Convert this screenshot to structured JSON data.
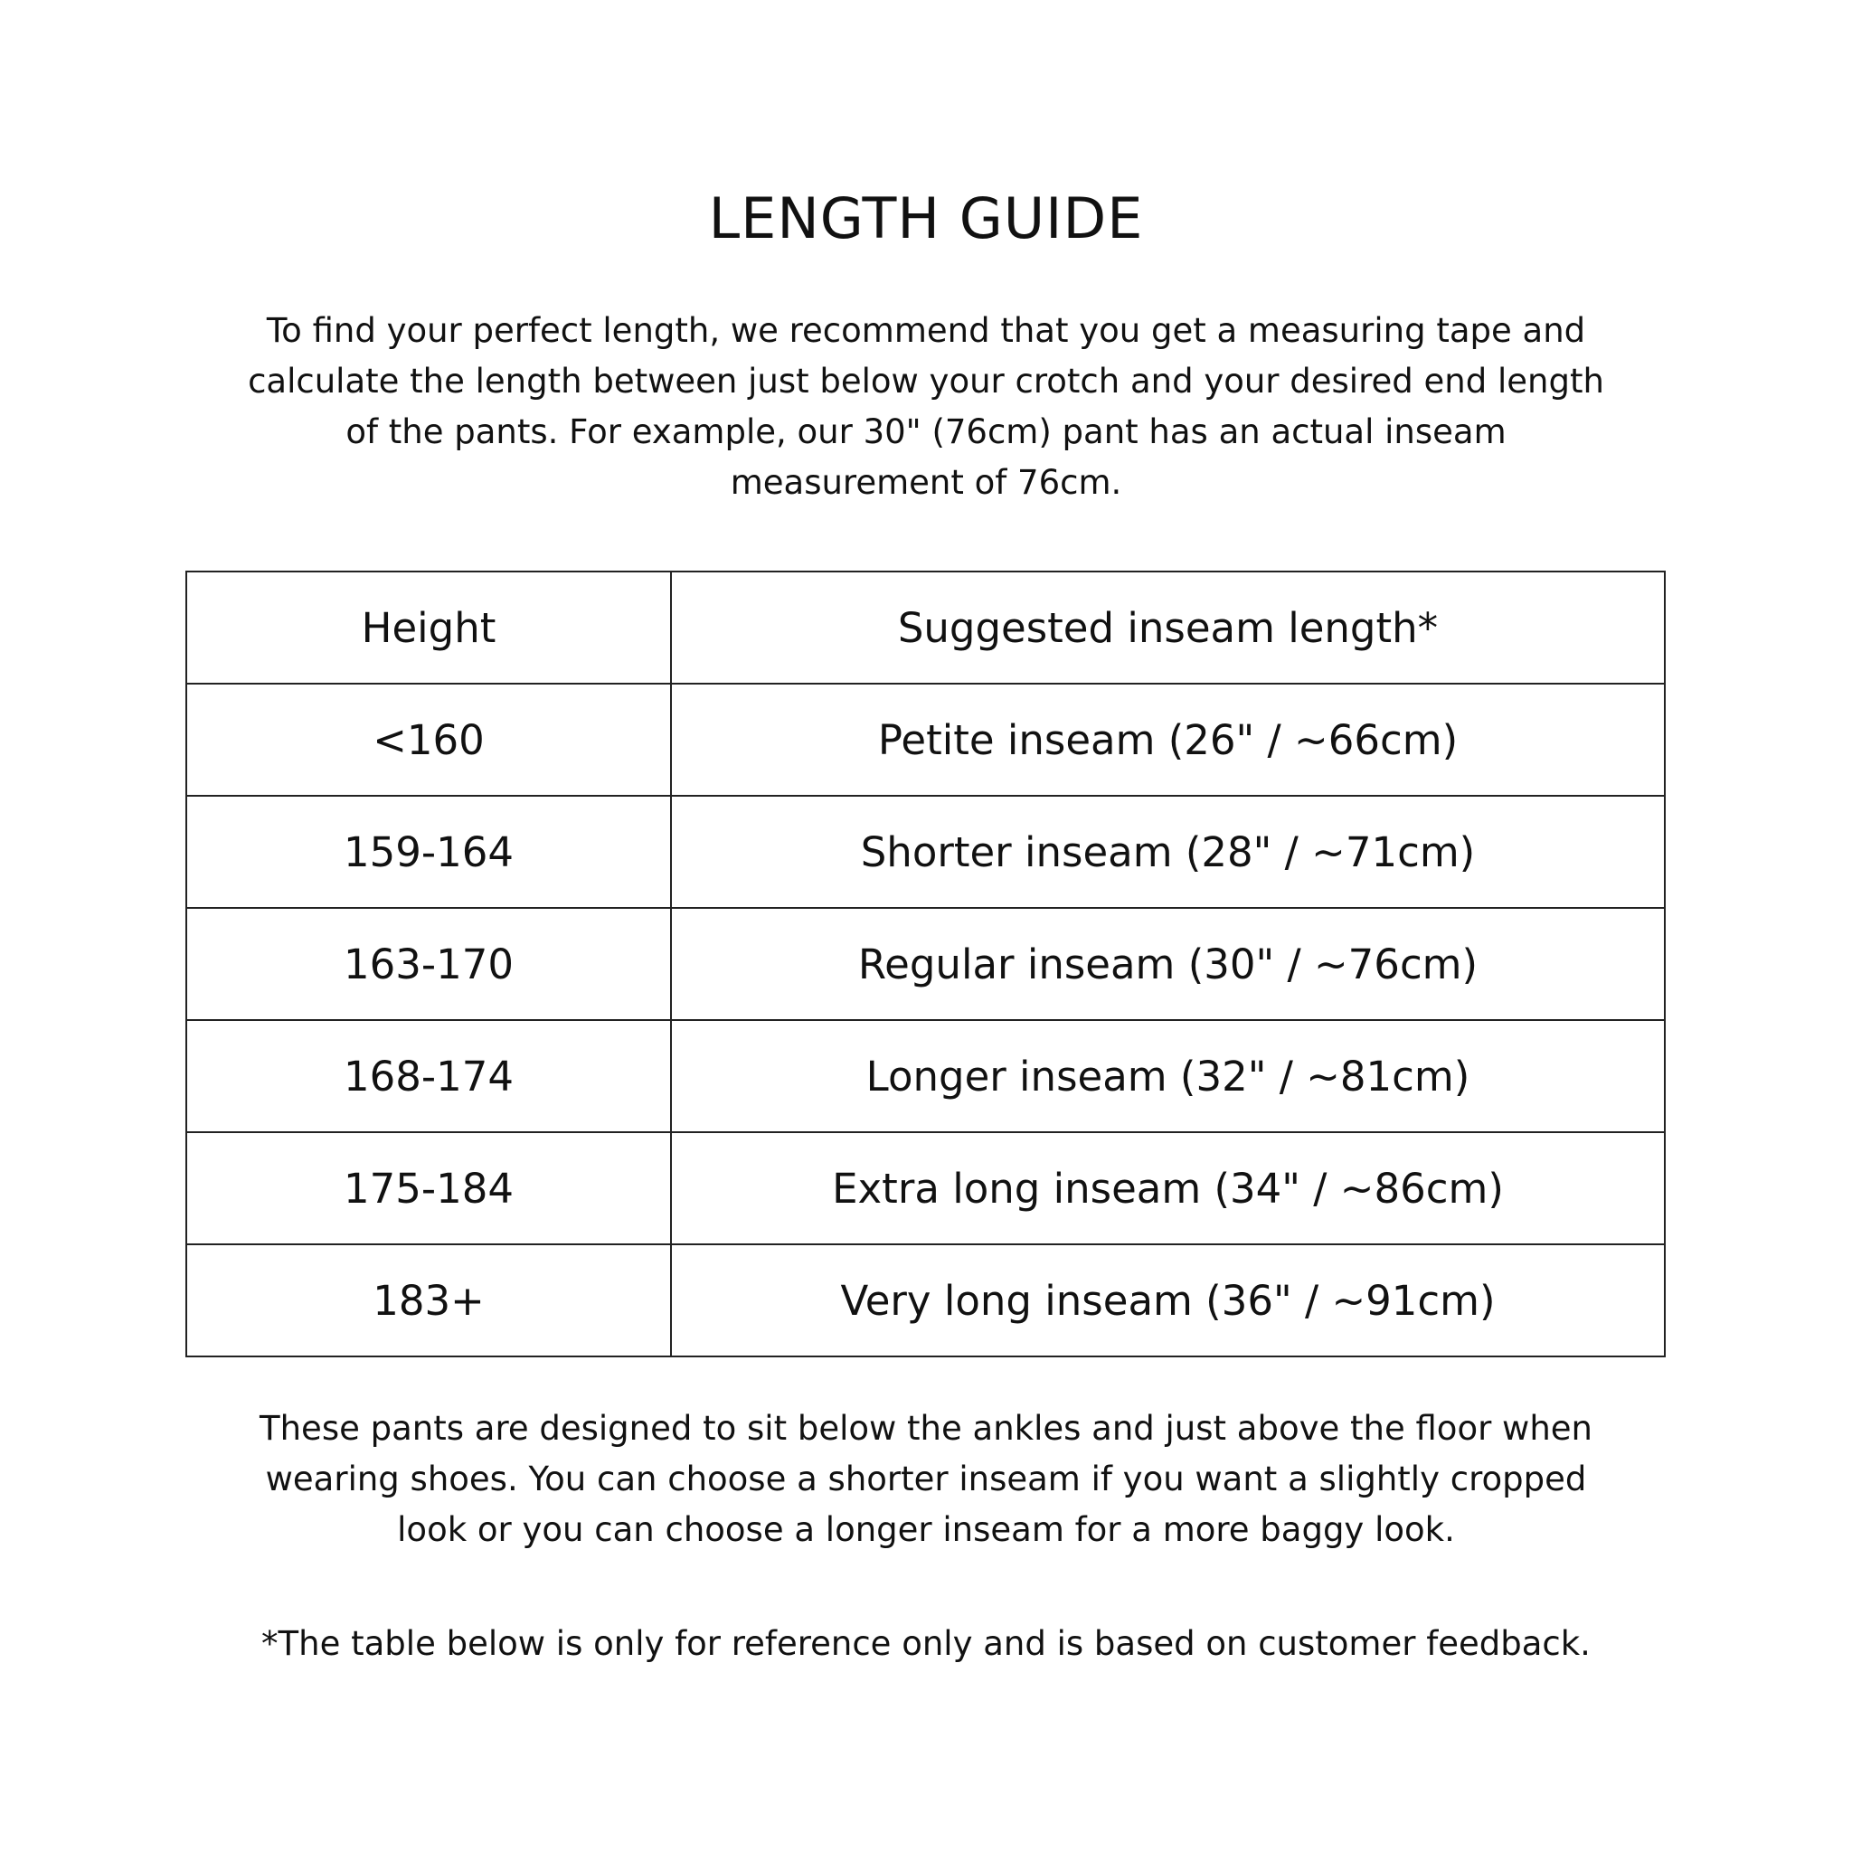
{
  "title": "LENGTH GUIDE",
  "intro_lines": [
    "To find your perfect length, we recommend that you get a measuring tape and",
    "calculate the length between just below your crotch and your desired end length",
    "of the pants. For example, our 30\" (76cm) pant has an actual inseam",
    "measurement of 76cm."
  ],
  "table": {
    "headers": [
      "Height",
      "Suggested inseam length*"
    ],
    "rows": [
      [
        "<160",
        "Petite inseam (26\" / ~66cm)"
      ],
      [
        "159-164",
        "Shorter inseam (28\" / ~71cm)"
      ],
      [
        "163-170",
        "Regular inseam (30\" / ~76cm)"
      ],
      [
        "168-174",
        "Longer inseam (32\" / ~81cm)"
      ],
      [
        "175-184",
        "Extra long inseam (34\" / ~86cm)"
      ],
      [
        "183+",
        "Very long inseam (36\" / ~91cm)"
      ]
    ]
  },
  "note_lines": [
    "These pants are designed to sit below the ankles and just above the floor when",
    "wearing shoes. You can choose a shorter inseam if you want a slightly cropped",
    "look or you can choose a longer inseam for a more baggy look."
  ],
  "footnote": "*The table below is only for reference only and is based on customer feedback."
}
